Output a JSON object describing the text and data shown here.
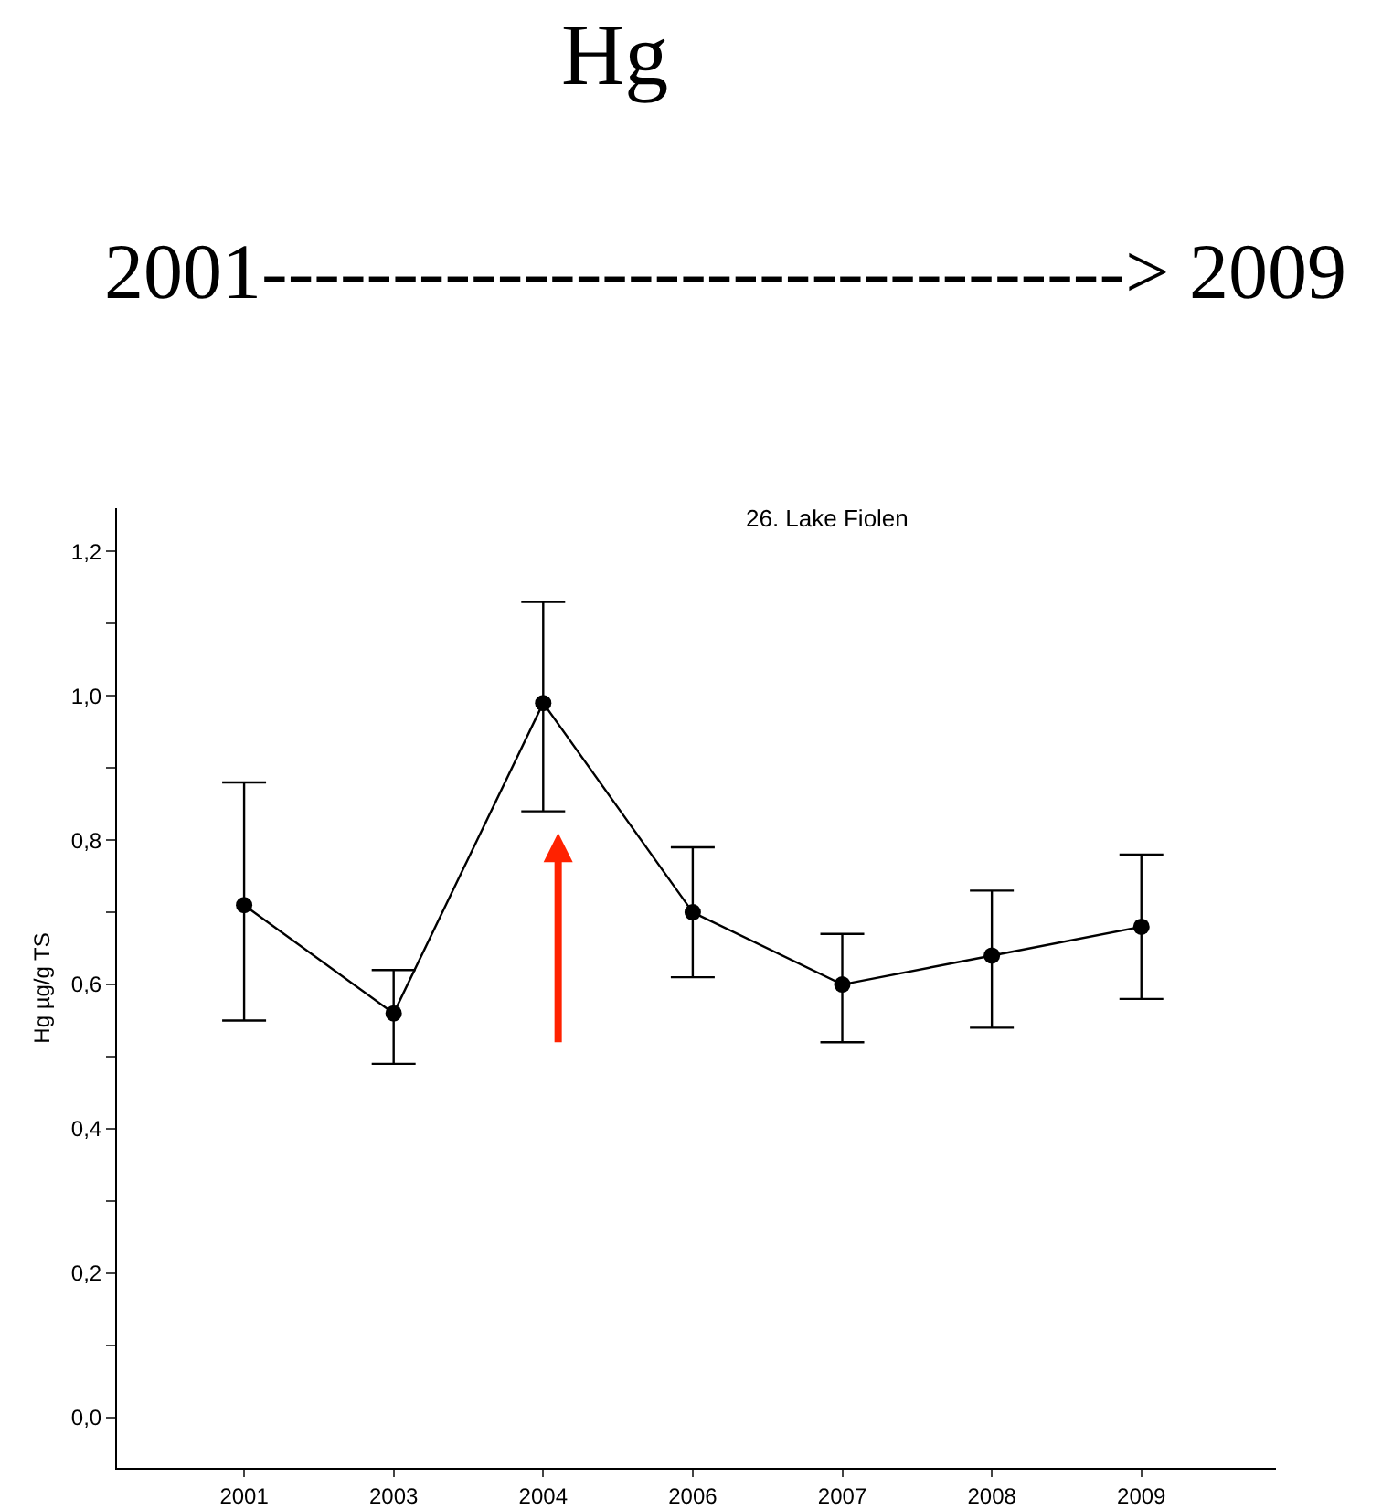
{
  "chart_data": {
    "type": "line",
    "title": "Hg",
    "subtitle": "2001---------------------------------> 2009",
    "ylabel": "Hg µg/g TS",
    "annotations": [
      "26. Lake Fiolen"
    ],
    "categories": [
      "2001",
      "2003",
      "2004",
      "2006",
      "2007",
      "2008",
      "2009"
    ],
    "series": [
      {
        "color": "#000000",
        "values": [
          0.71,
          0.56,
          0.99,
          0.7,
          0.6,
          0.64,
          0.68
        ],
        "errors": [
          [
            0.55,
            0.88
          ],
          [
            0.49,
            0.62
          ],
          [
            0.84,
            1.13
          ],
          [
            0.61,
            0.79
          ],
          [
            0.52,
            0.67
          ],
          [
            0.54,
            0.73
          ],
          [
            0.58,
            0.78
          ]
        ]
      }
    ],
    "ylim": [
      -0.07,
      1.26
    ],
    "yticks": [
      {
        "value": 0,
        "label": "0,0"
      },
      {
        "value": 0.1,
        "label": null
      },
      {
        "value": 0.2,
        "label": "0,2"
      },
      {
        "value": 0.3,
        "label": null
      },
      {
        "value": 0.4,
        "label": "0,4"
      },
      {
        "value": 0.5,
        "label": null
      },
      {
        "value": 0.6,
        "label": "0,6"
      },
      {
        "value": 0.7,
        "label": null
      },
      {
        "value": 0.8,
        "label": "0,8"
      },
      {
        "value": 0.9,
        "label": null
      },
      {
        "value": 1.0,
        "label": "1,0"
      },
      {
        "value": 1.1,
        "label": null
      },
      {
        "value": 1.2,
        "label": "1,2"
      }
    ],
    "marker": "circle",
    "line_style": "solid"
  }
}
